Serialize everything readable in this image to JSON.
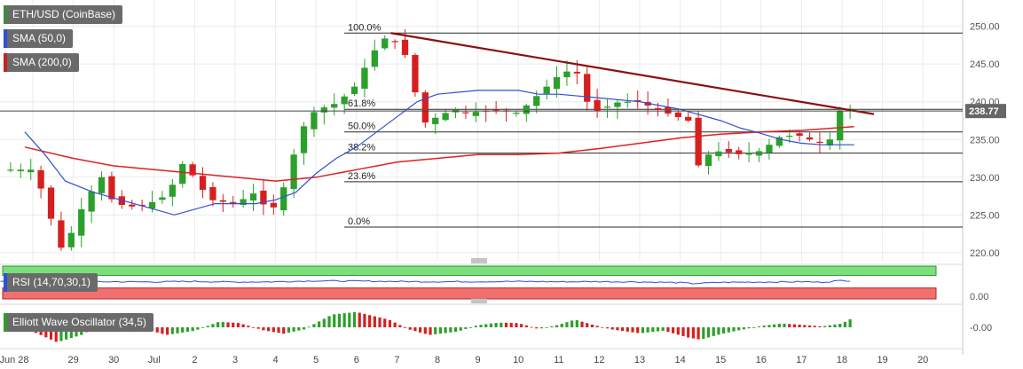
{
  "legends": {
    "symbol": "ETH/USD (CoinBase)",
    "sma50": "SMA (50,0)",
    "sma200": "SMA (200,0)",
    "rsi": "RSI (14,70,30,1)",
    "ewo": "Elliott Wave Oscillator (34,5)"
  },
  "colors": {
    "up": "#2ba02b",
    "down": "#d62020",
    "sma50": "#2f4fd6",
    "sma200": "#e02020",
    "trendline": "#8b0f0f",
    "rsi_line": "#2f4fd6",
    "rsi_overbought": "#7dde7d",
    "rsi_oversold": "#f07070",
    "price_tag": "#666666",
    "legend_sym": "#3b8d3b",
    "legend_sma50": "#2f4fd6",
    "legend_sma200": "#cc2020"
  },
  "chart_data": [
    {
      "type": "candlestick",
      "title": "ETH/USD (CoinBase)",
      "x_tick_labels": [
        "Jun 28",
        "29",
        "30",
        "Jul",
        "2",
        "3",
        "4",
        "5",
        "6",
        "7",
        "8",
        "9",
        "10",
        "11",
        "12",
        "13",
        "14",
        "15",
        "16",
        "17",
        "18",
        "19",
        "20"
      ],
      "y_ticks": [
        220.0,
        225.0,
        230.0,
        235.0,
        240.0,
        245.0,
        250.0
      ],
      "y_tick_labels": [
        "220.00",
        "225.00",
        "230.00",
        "235.00",
        "240.00",
        "245.00",
        "250.00"
      ],
      "ylim": [
        218.5,
        252.5
      ],
      "last_price": "238.77",
      "fib_levels": [
        {
          "label": "100.0%",
          "value": 249.1
        },
        {
          "label": "61.8%",
          "value": 239.0
        },
        {
          "label": "50.0%",
          "value": 236.0
        },
        {
          "label": "38.2%",
          "value": 233.2
        },
        {
          "label": "23.6%",
          "value": 229.4
        },
        {
          "label": "0.0%",
          "value": 223.4
        }
      ],
      "trendline": {
        "start": [
          8.85,
          249.1
        ],
        "end": [
          20.35,
          238.6
        ]
      },
      "price_path": [
        [
          0,
          231
        ],
        [
          0.4,
          226
        ],
        [
          0.6,
          220
        ],
        [
          0.9,
          222
        ],
        [
          1.3,
          227
        ],
        [
          1.7,
          230
        ],
        [
          2.0,
          226.5
        ],
        [
          2.6,
          226
        ],
        [
          3.1,
          227
        ],
        [
          3.4,
          228
        ],
        [
          3.6,
          232
        ],
        [
          3.8,
          231.5
        ],
        [
          4.1,
          229
        ],
        [
          4.4,
          227
        ],
        [
          5.0,
          226.5
        ],
        [
          5.5,
          228
        ],
        [
          5.75,
          226
        ],
        [
          6.0,
          226
        ],
        [
          6.3,
          230
        ],
        [
          6.6,
          236
        ],
        [
          7.0,
          239
        ],
        [
          7.4,
          239.5
        ],
        [
          7.9,
          241.5
        ],
        [
          8.4,
          246.5
        ],
        [
          8.8,
          249
        ],
        [
          9.3,
          245.5
        ],
        [
          9.6,
          237
        ],
        [
          10.0,
          238
        ],
        [
          10.4,
          239
        ],
        [
          10.7,
          238.5
        ],
        [
          11.5,
          239
        ],
        [
          12.0,
          238.5
        ],
        [
          12.5,
          241
        ],
        [
          13.0,
          243.5
        ],
        [
          13.4,
          244.5
        ],
        [
          13.8,
          238.5
        ],
        [
          14.5,
          240
        ],
        [
          15.0,
          240
        ],
        [
          15.4,
          239
        ],
        [
          16.2,
          237.5
        ],
        [
          16.35,
          231
        ],
        [
          16.7,
          233
        ],
        [
          17.0,
          233.5
        ],
        [
          17.5,
          233
        ],
        [
          18.0,
          233.5
        ],
        [
          18.5,
          235.5
        ],
        [
          19.0,
          235.5
        ],
        [
          19.4,
          234.5
        ],
        [
          19.7,
          235
        ],
        [
          19.9,
          238.5
        ],
        [
          20.05,
          239.5
        ],
        [
          20.3,
          238.8
        ]
      ],
      "sma50_path": [
        [
          -0.2,
          236
        ],
        [
          0.3,
          233
        ],
        [
          0.8,
          229.5
        ],
        [
          1.5,
          228
        ],
        [
          2.5,
          226.5
        ],
        [
          3.5,
          225
        ],
        [
          4.5,
          226.5
        ],
        [
          5.5,
          226.5
        ],
        [
          6.0,
          227
        ],
        [
          6.5,
          228
        ],
        [
          7.0,
          230.5
        ],
        [
          7.5,
          232.5
        ],
        [
          8.0,
          234
        ],
        [
          8.5,
          236
        ],
        [
          9.0,
          238
        ],
        [
          9.5,
          240
        ],
        [
          10.0,
          241
        ],
        [
          11.0,
          241.5
        ],
        [
          12.0,
          241.5
        ],
        [
          12.5,
          241
        ],
        [
          13.0,
          241
        ],
        [
          14.0,
          240.5
        ],
        [
          15.0,
          240
        ],
        [
          15.5,
          239.5
        ],
        [
          16.0,
          239
        ],
        [
          17.0,
          237.5
        ],
        [
          17.5,
          236.5
        ],
        [
          18.0,
          235.8
        ],
        [
          18.5,
          235
        ],
        [
          19.0,
          234.5
        ],
        [
          19.5,
          234.3
        ],
        [
          20.3,
          234.3
        ]
      ],
      "sma200_path": [
        [
          -0.2,
          234
        ],
        [
          1.0,
          232.5
        ],
        [
          2.0,
          231.5
        ],
        [
          3.0,
          231
        ],
        [
          4.0,
          230.5
        ],
        [
          5.0,
          230
        ],
        [
          6.0,
          229.5
        ],
        [
          7.0,
          230
        ],
        [
          8.0,
          231
        ],
        [
          9.0,
          232
        ],
        [
          10.0,
          232.5
        ],
        [
          11.0,
          233
        ],
        [
          12.0,
          233
        ],
        [
          13.0,
          233.2
        ],
        [
          14.0,
          233.8
        ],
        [
          15.0,
          234.5
        ],
        [
          16.0,
          235.2
        ],
        [
          17.0,
          235.7
        ],
        [
          18.0,
          236
        ],
        [
          19.0,
          236.2
        ],
        [
          20.3,
          236.7
        ]
      ]
    },
    {
      "type": "line",
      "title": "RSI (14,70,30,1)",
      "y_tick_labels": [
        "0.00"
      ],
      "overbought": 70,
      "oversold": 30,
      "ylim": [
        -5,
        100
      ],
      "rsi_path": [
        [
          0,
          50
        ],
        [
          1,
          49
        ],
        [
          2,
          50
        ],
        [
          3,
          49.5
        ],
        [
          4,
          51
        ],
        [
          5,
          49
        ],
        [
          6,
          50
        ],
        [
          7,
          53
        ],
        [
          8,
          52
        ],
        [
          9,
          51
        ],
        [
          10,
          50
        ],
        [
          11,
          50.5
        ],
        [
          12,
          51
        ],
        [
          13,
          50
        ],
        [
          14,
          50.5
        ],
        [
          15,
          49.5
        ],
        [
          16,
          47
        ],
        [
          16.3,
          44
        ],
        [
          17,
          48
        ],
        [
          18,
          49
        ],
        [
          19,
          50
        ],
        [
          19.5,
          48.5
        ],
        [
          20,
          54
        ],
        [
          20.3,
          53
        ]
      ]
    },
    {
      "type": "bar",
      "title": "Elliott Wave Oscillator (34,5)",
      "y_tick_labels": [
        "-0.00"
      ],
      "ewo_path": [
        [
          0,
          -1.0
        ],
        [
          0.6,
          -3.5
        ],
        [
          1.2,
          -1.8
        ],
        [
          1.7,
          0.8
        ],
        [
          2.2,
          2.0
        ],
        [
          2.8,
          -0.5
        ],
        [
          3.3,
          -1.8
        ],
        [
          4.0,
          -0.8
        ],
        [
          4.6,
          1.3
        ],
        [
          5.1,
          1.0
        ],
        [
          5.7,
          -0.7
        ],
        [
          6.2,
          -1.5
        ],
        [
          6.7,
          -0.5
        ],
        [
          7.4,
          3.0
        ],
        [
          8.0,
          3.6
        ],
        [
          8.8,
          1.8
        ],
        [
          9.3,
          -0.5
        ],
        [
          9.8,
          -1.8
        ],
        [
          10.5,
          -1.0
        ],
        [
          11.0,
          0.5
        ],
        [
          11.5,
          1.1
        ],
        [
          12.0,
          1.0
        ],
        [
          12.5,
          -0.4
        ],
        [
          13.0,
          0.6
        ],
        [
          13.4,
          1.8
        ],
        [
          13.8,
          0.7
        ],
        [
          14.3,
          -0.5
        ],
        [
          15.0,
          -1.4
        ],
        [
          15.6,
          -0.8
        ],
        [
          16.2,
          -2.4
        ],
        [
          16.5,
          -2.9
        ],
        [
          17.0,
          -1.6
        ],
        [
          17.5,
          -0.6
        ],
        [
          18.0,
          0.3
        ],
        [
          18.5,
          0.9
        ],
        [
          19.0,
          0.6
        ],
        [
          19.5,
          0.2
        ],
        [
          20.0,
          0.9
        ],
        [
          20.3,
          2.4
        ]
      ]
    }
  ]
}
